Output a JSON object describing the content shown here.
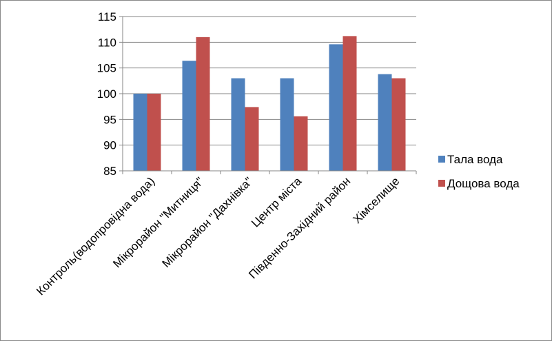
{
  "chart_data": {
    "type": "bar",
    "title": "",
    "xlabel": "",
    "ylabel": "",
    "categories": [
      "Контроль(водопровідна вода)",
      "Мікрорайон \"Митниця\"",
      "Мікрорайон \"Дахнівка\"",
      "Центр міста",
      "Південно-Західний район",
      "Хімселище"
    ],
    "series": [
      {
        "name": "Тала вода",
        "color": "#4F81BD",
        "values": [
          100,
          106.4,
          103,
          103,
          109.6,
          103.8
        ]
      },
      {
        "name": "Дощова вода",
        "color": "#C0504D",
        "values": [
          100,
          111,
          97.4,
          95.6,
          111.2,
          103
        ]
      }
    ],
    "ylim": [
      85,
      115
    ],
    "yticks": [
      85,
      90,
      95,
      100,
      105,
      110,
      115
    ],
    "grid": true,
    "legend": "right"
  }
}
